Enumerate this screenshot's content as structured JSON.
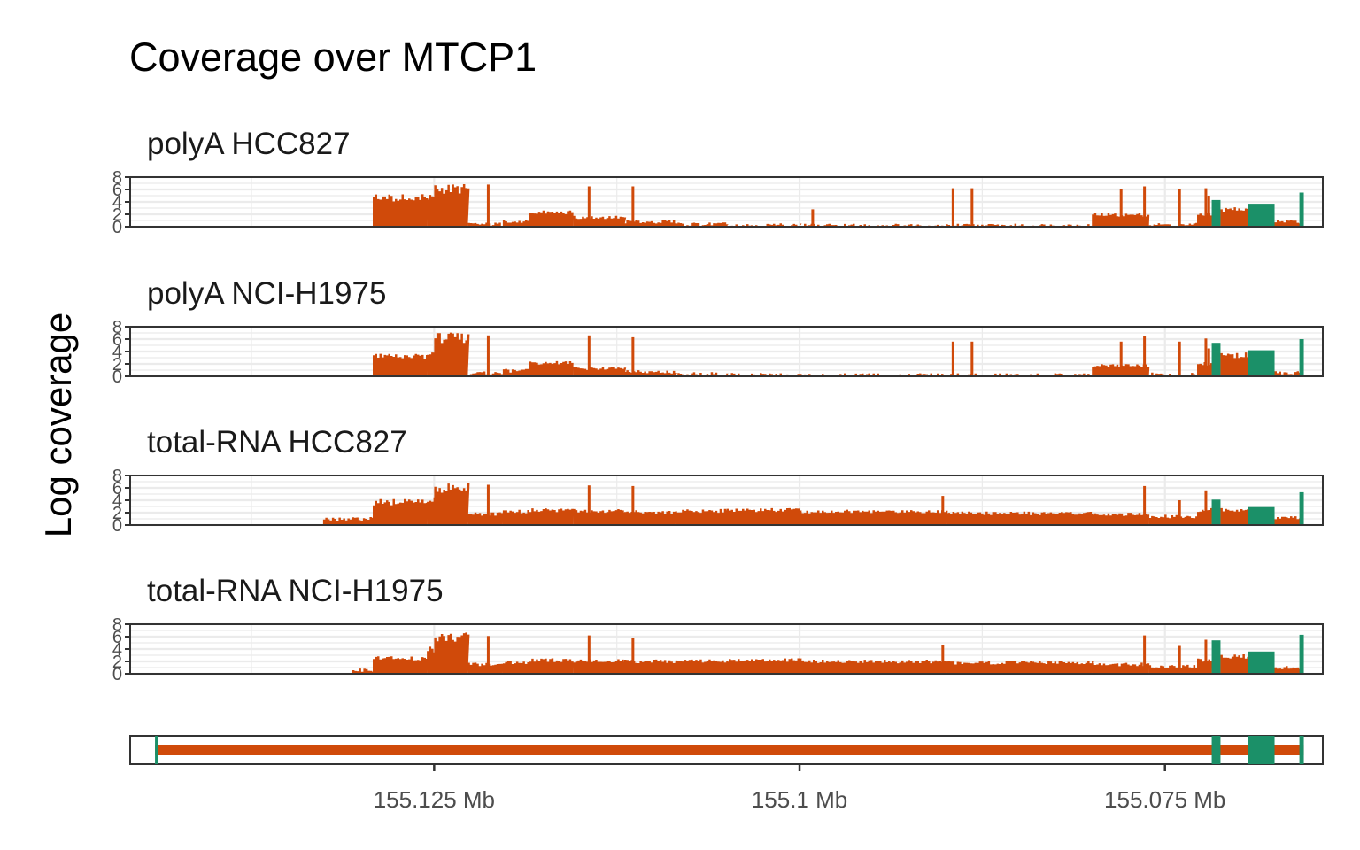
{
  "colors": {
    "intron": "#D04A0A",
    "exon": "#1B9068",
    "grid": "#EBEBEB",
    "frame": "#333333",
    "axis_text": "#4D4D4D"
  },
  "chart_data": {
    "type": "area",
    "title": "Coverage over MTCP1",
    "ylabel": "Log coverage",
    "xlabel": "",
    "x_unit": "Mb",
    "x_reversed": true,
    "xlim": [
      155.1458,
      155.0642
    ],
    "ylim": [
      0,
      8
    ],
    "y_ticks": [
      0,
      2,
      4,
      6,
      8
    ],
    "x_ticks": [
      {
        "value": 155.125,
        "label": "155.125 Mb"
      },
      {
        "value": 155.1,
        "label": "155.1 Mb"
      },
      {
        "value": 155.075,
        "label": "155.075 Mb"
      }
    ],
    "grid": true,
    "exons": [
      [
        155.1441,
        155.1439
      ],
      [
        155.0718,
        155.0712
      ],
      [
        155.0693,
        155.0675
      ],
      [
        155.0658,
        155.0655
      ]
    ],
    "panels": [
      {
        "label": "polyA HCC827",
        "segments": [
          {
            "from": 155.1255,
            "to": 155.125,
            "level": 4.8
          },
          {
            "from": 155.125,
            "to": 155.1227,
            "level": 6.1
          },
          {
            "from": 155.1227,
            "to": 155.1203,
            "level": 0.4
          },
          {
            "from": 155.1203,
            "to": 155.1185,
            "level": 0.8
          },
          {
            "from": 155.1185,
            "to": 155.1155,
            "level": 2.3
          },
          {
            "from": 155.1155,
            "to": 155.112,
            "level": 1.5
          },
          {
            "from": 155.112,
            "to": 155.1085,
            "level": 0.8
          },
          {
            "from": 155.1085,
            "to": 155.105,
            "level": 0.4
          },
          {
            "from": 155.105,
            "to": 155.1,
            "level": 0.25
          },
          {
            "from": 155.1,
            "to": 155.09,
            "level": 0.2
          },
          {
            "from": 155.09,
            "to": 155.08,
            "level": 0.2
          },
          {
            "from": 155.08,
            "to": 155.0761,
            "level": 1.9
          },
          {
            "from": 155.0761,
            "to": 155.0728,
            "level": 0.3
          },
          {
            "from": 155.0728,
            "to": 155.0718,
            "level": 2.0
          },
          {
            "from": 155.0712,
            "to": 155.0693,
            "level": 2.8
          },
          {
            "from": 155.0675,
            "to": 155.0658,
            "level": 0.8
          },
          {
            "from": 155.1292,
            "to": 155.1255,
            "level": 4.6
          }
        ],
        "exon_levels": [
          0,
          4.3,
          3.7,
          5.5
        ],
        "spikes": [
          {
            "x": 155.1213,
            "v": 6.8
          },
          {
            "x": 155.1144,
            "v": 6.5
          },
          {
            "x": 155.1114,
            "v": 6.5
          },
          {
            "x": 155.0991,
            "v": 2.8
          },
          {
            "x": 155.0895,
            "v": 6.2
          },
          {
            "x": 155.0882,
            "v": 6.2
          },
          {
            "x": 155.078,
            "v": 6.1
          },
          {
            "x": 155.0764,
            "v": 6.5
          },
          {
            "x": 155.074,
            "v": 6.0
          },
          {
            "x": 155.0722,
            "v": 6.2
          },
          {
            "x": 155.072,
            "v": 5.0
          }
        ]
      },
      {
        "label": "polyA NCI-H1975",
        "segments": [
          {
            "from": 155.1255,
            "to": 155.125,
            "level": 4.0
          },
          {
            "from": 155.125,
            "to": 155.1227,
            "level": 6.2
          },
          {
            "from": 155.1227,
            "to": 155.1203,
            "level": 0.5
          },
          {
            "from": 155.1203,
            "to": 155.1185,
            "level": 0.9
          },
          {
            "from": 155.1185,
            "to": 155.1155,
            "level": 2.2
          },
          {
            "from": 155.1155,
            "to": 155.112,
            "level": 1.3
          },
          {
            "from": 155.112,
            "to": 155.1085,
            "level": 0.7
          },
          {
            "from": 155.1085,
            "to": 155.105,
            "level": 0.4
          },
          {
            "from": 155.105,
            "to": 155.1,
            "level": 0.25
          },
          {
            "from": 155.1,
            "to": 155.09,
            "level": 0.2
          },
          {
            "from": 155.09,
            "to": 155.08,
            "level": 0.2
          },
          {
            "from": 155.08,
            "to": 155.0761,
            "level": 1.7
          },
          {
            "from": 155.0761,
            "to": 155.0728,
            "level": 0.3
          },
          {
            "from": 155.0728,
            "to": 155.0718,
            "level": 2.0
          },
          {
            "from": 155.0712,
            "to": 155.0693,
            "level": 3.4
          },
          {
            "from": 155.0675,
            "to": 155.0658,
            "level": 0.6
          },
          {
            "from": 155.1292,
            "to": 155.1255,
            "level": 3.2
          }
        ],
        "exon_levels": [
          0,
          5.4,
          4.2,
          6.0
        ],
        "spikes": [
          {
            "x": 155.1213,
            "v": 6.6
          },
          {
            "x": 155.1144,
            "v": 6.6
          },
          {
            "x": 155.1114,
            "v": 6.3
          },
          {
            "x": 155.0895,
            "v": 5.6
          },
          {
            "x": 155.0882,
            "v": 5.6
          },
          {
            "x": 155.078,
            "v": 5.6
          },
          {
            "x": 155.0764,
            "v": 6.5
          },
          {
            "x": 155.074,
            "v": 5.6
          },
          {
            "x": 155.0722,
            "v": 6.1
          },
          {
            "x": 155.072,
            "v": 4.5
          }
        ]
      },
      {
        "label": "total-RNA HCC827",
        "segments": [
          {
            "from": 155.1255,
            "to": 155.125,
            "level": 4.0
          },
          {
            "from": 155.125,
            "to": 155.1227,
            "level": 6.0
          },
          {
            "from": 155.1227,
            "to": 155.1203,
            "level": 1.8
          },
          {
            "from": 155.1203,
            "to": 155.1185,
            "level": 2.2
          },
          {
            "from": 155.1185,
            "to": 155.1155,
            "level": 2.4
          },
          {
            "from": 155.1155,
            "to": 155.112,
            "level": 2.3
          },
          {
            "from": 155.112,
            "to": 155.1085,
            "level": 2.1
          },
          {
            "from": 155.1085,
            "to": 155.105,
            "level": 2.3
          },
          {
            "from": 155.105,
            "to": 155.1,
            "level": 2.4
          },
          {
            "from": 155.1,
            "to": 155.09,
            "level": 2.2
          },
          {
            "from": 155.09,
            "to": 155.08,
            "level": 1.9
          },
          {
            "from": 155.08,
            "to": 155.0761,
            "level": 1.7
          },
          {
            "from": 155.0761,
            "to": 155.0728,
            "level": 1.4
          },
          {
            "from": 155.0728,
            "to": 155.0718,
            "level": 2.4
          },
          {
            "from": 155.0712,
            "to": 155.0693,
            "level": 2.5
          },
          {
            "from": 155.0675,
            "to": 155.0658,
            "level": 1.2
          },
          {
            "from": 155.1292,
            "to": 155.1255,
            "level": 3.7
          },
          {
            "from": 155.1326,
            "to": 155.1292,
            "level": 1.0
          }
        ],
        "exon_levels": [
          0,
          4.1,
          2.9,
          5.3
        ],
        "spikes": [
          {
            "x": 155.1213,
            "v": 6.5
          },
          {
            "x": 155.1144,
            "v": 6.4
          },
          {
            "x": 155.1114,
            "v": 6.3
          },
          {
            "x": 155.0902,
            "v": 4.7
          },
          {
            "x": 155.0764,
            "v": 6.3
          },
          {
            "x": 155.0722,
            "v": 5.6
          },
          {
            "x": 155.074,
            "v": 4.0
          }
        ]
      },
      {
        "label": "total-RNA NCI-H1975",
        "segments": [
          {
            "from": 155.1255,
            "to": 155.125,
            "level": 4.0
          },
          {
            "from": 155.125,
            "to": 155.1227,
            "level": 5.9
          },
          {
            "from": 155.1227,
            "to": 155.1203,
            "level": 1.5
          },
          {
            "from": 155.1203,
            "to": 155.1185,
            "level": 1.8
          },
          {
            "from": 155.1185,
            "to": 155.1155,
            "level": 2.2
          },
          {
            "from": 155.1155,
            "to": 155.112,
            "level": 2.1
          },
          {
            "from": 155.112,
            "to": 155.1085,
            "level": 2.0
          },
          {
            "from": 155.1085,
            "to": 155.105,
            "level": 2.1
          },
          {
            "from": 155.105,
            "to": 155.1,
            "level": 2.2
          },
          {
            "from": 155.1,
            "to": 155.09,
            "level": 2.0
          },
          {
            "from": 155.09,
            "to": 155.08,
            "level": 1.8
          },
          {
            "from": 155.08,
            "to": 155.0761,
            "level": 1.5
          },
          {
            "from": 155.0761,
            "to": 155.0728,
            "level": 1.2
          },
          {
            "from": 155.0728,
            "to": 155.0718,
            "level": 2.2
          },
          {
            "from": 155.0712,
            "to": 155.0693,
            "level": 2.8
          },
          {
            "from": 155.0675,
            "to": 155.0658,
            "level": 1.0
          },
          {
            "from": 155.1292,
            "to": 155.1255,
            "level": 2.5
          },
          {
            "from": 155.1306,
            "to": 155.1292,
            "level": 0.6
          }
        ],
        "exon_levels": [
          0,
          5.4,
          3.6,
          6.3
        ],
        "spikes": [
          {
            "x": 155.1213,
            "v": 6.1
          },
          {
            "x": 155.1144,
            "v": 6.2
          },
          {
            "x": 155.1114,
            "v": 5.8
          },
          {
            "x": 155.0902,
            "v": 4.6
          },
          {
            "x": 155.0764,
            "v": 6.2
          },
          {
            "x": 155.074,
            "v": 4.5
          },
          {
            "x": 155.0722,
            "v": 5.5
          }
        ]
      }
    ]
  }
}
